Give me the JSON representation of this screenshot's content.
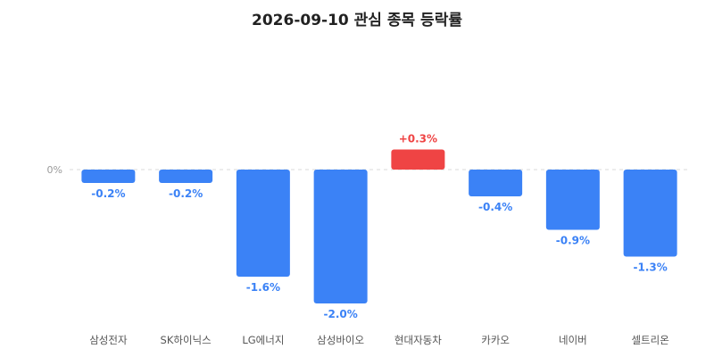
{
  "chart_data": {
    "type": "bar",
    "title": "2026-09-10 관심 종목 등락률",
    "categories": [
      "삼성전자",
      "SK하이닉스",
      "LG에너지",
      "삼성바이오",
      "현대자동차",
      "카카오",
      "네이버",
      "셀트리온"
    ],
    "values": [
      -0.2,
      -0.2,
      -1.6,
      -2.0,
      0.3,
      -0.4,
      -0.9,
      -1.3
    ],
    "value_labels": [
      "-0.2%",
      "-0.2%",
      "-1.6%",
      "-2.0%",
      "+0.3%",
      "-0.4%",
      "-0.9%",
      "-1.3%"
    ],
    "zero_tick_label": "0%",
    "ylim": [
      -2.0,
      0.3
    ],
    "grid": "dashed zero line",
    "legend": "none",
    "colors": {
      "negative": "#3b82f6",
      "positive": "#ef4444",
      "negative_label": "#3b82f6",
      "positive_label": "#ef4444"
    }
  }
}
